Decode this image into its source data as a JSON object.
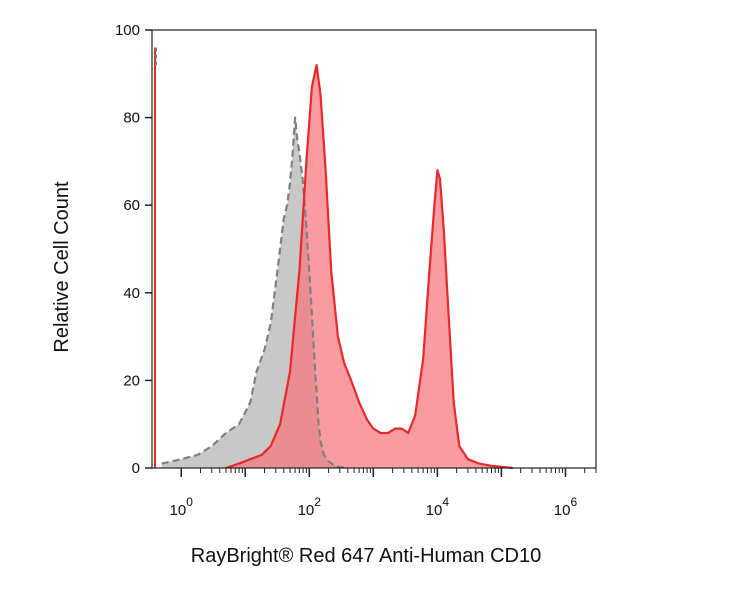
{
  "chart_data": {
    "type": "area",
    "title": "",
    "xlabel": "RayBright® Red 647 Anti-Human CD10",
    "ylabel": "Relative Cell Count",
    "x_scale": "log",
    "xlim": [
      0.35,
      3000000
    ],
    "ylim": [
      0,
      100
    ],
    "grid": false,
    "legend": "none",
    "x_ticks": [
      {
        "value": 1,
        "base": "10",
        "exp": "0"
      },
      {
        "value": 100,
        "base": "10",
        "exp": "2"
      },
      {
        "value": 10000,
        "base": "10",
        "exp": "4"
      },
      {
        "value": 1000000,
        "base": "10",
        "exp": "6"
      }
    ],
    "y_ticks": [
      {
        "value": 0,
        "label": "0"
      },
      {
        "value": 20,
        "label": "20"
      },
      {
        "value": 40,
        "label": "40"
      },
      {
        "value": 60,
        "label": "60"
      },
      {
        "value": 80,
        "label": "80"
      },
      {
        "value": 100,
        "label": "100"
      }
    ],
    "series": [
      {
        "style": "dashed",
        "color": "#7f7f7f",
        "fill": "#c8c8c8",
        "x": [
          0.5,
          1,
          1.8,
          3,
          5,
          8,
          12,
          15,
          20,
          25,
          30,
          35,
          40,
          45,
          50,
          55,
          60,
          65,
          70,
          80,
          90,
          100,
          110,
          120,
          130,
          140,
          150,
          170,
          200,
          250,
          300,
          400
        ],
        "y": [
          1,
          2,
          3,
          5,
          8,
          10,
          15,
          22,
          27,
          33,
          42,
          50,
          57,
          60,
          65,
          72,
          80,
          75,
          72,
          65,
          55,
          45,
          35,
          25,
          17,
          10,
          6,
          3,
          1.5,
          0.5,
          0.2,
          0
        ]
      },
      {
        "style": "solid",
        "color": "#e8282a",
        "fill": "#f5767a",
        "x": [
          5,
          8,
          12,
          18,
          25,
          35,
          50,
          70,
          90,
          110,
          130,
          150,
          180,
          220,
          280,
          350,
          450,
          600,
          800,
          1000,
          1300,
          1700,
          2200,
          2800,
          3500,
          4500,
          6000,
          7500,
          9000,
          10000,
          11000,
          12500,
          15000,
          18000,
          22000,
          30000,
          45000,
          70000,
          150000
        ],
        "y": [
          0,
          1,
          2,
          3,
          5,
          10,
          22,
          45,
          70,
          87,
          92,
          85,
          68,
          45,
          30,
          24,
          20,
          15,
          11,
          9,
          8,
          8,
          9,
          9,
          8,
          12,
          25,
          45,
          60,
          68,
          66,
          55,
          35,
          15,
          5,
          2,
          1,
          0.5,
          0
        ]
      }
    ]
  }
}
